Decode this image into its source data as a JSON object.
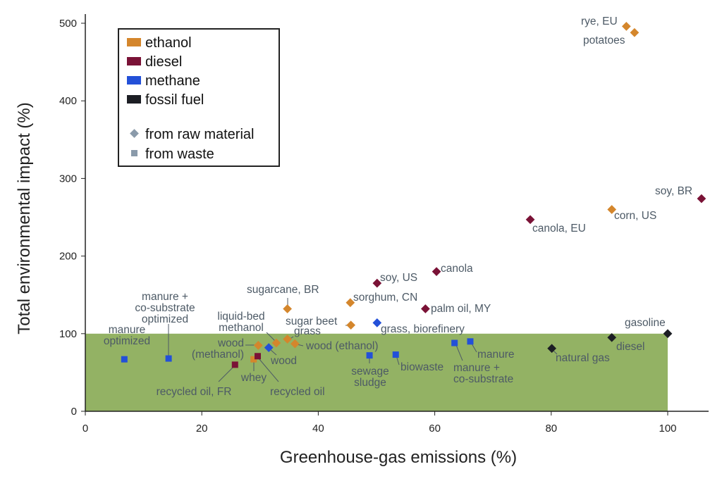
{
  "chart_data": {
    "type": "scatter",
    "title": "",
    "xlabel": "Greenhouse-gas emissions (%)",
    "ylabel": "Total environmental impact (%)",
    "xlim": [
      0,
      106
    ],
    "ylim": [
      0,
      500
    ],
    "xticks": [
      "0",
      "20",
      "40",
      "60",
      "80",
      "100"
    ],
    "yticks": [
      "0",
      "100",
      "200",
      "300",
      "400",
      "500"
    ],
    "grid": false,
    "legend_position": "top-left",
    "reference_region": {
      "x": [
        0,
        100
      ],
      "y": [
        0,
        100
      ],
      "color": "#93b264"
    },
    "colors": {
      "ethanol": "#d4862c",
      "diesel": "#7a1236",
      "methane": "#2350d8",
      "fossil fuel": "#1c1e24",
      "shape": "#8a9aaa"
    },
    "legend": {
      "fuels": [
        "ethanol",
        "diesel",
        "methane",
        "fossil fuel"
      ],
      "shapes": [
        {
          "shape": "diamond",
          "label": "from raw material"
        },
        {
          "shape": "square",
          "label": "from waste"
        }
      ]
    },
    "points": [
      {
        "label": "rye, EU",
        "fuel": "ethanol",
        "shape": "diamond",
        "x": 92.9,
        "y": 496
      },
      {
        "label": "potatoes",
        "fuel": "ethanol",
        "shape": "diamond",
        "x": 94.3,
        "y": 488
      },
      {
        "label": "soy, BR",
        "fuel": "diesel",
        "shape": "diamond",
        "x": 105.8,
        "y": 274
      },
      {
        "label": "corn, US",
        "fuel": "ethanol",
        "shape": "diamond",
        "x": 90.4,
        "y": 260
      },
      {
        "label": "canola, EU",
        "fuel": "diesel",
        "shape": "diamond",
        "x": 76.4,
        "y": 247
      },
      {
        "label": "canola",
        "fuel": "diesel",
        "shape": "diamond",
        "x": 60.3,
        "y": 180
      },
      {
        "label": "soy, US",
        "fuel": "diesel",
        "shape": "diamond",
        "x": 50.1,
        "y": 165
      },
      {
        "label": "palm oil, MY",
        "fuel": "diesel",
        "shape": "diamond",
        "x": 58.4,
        "y": 132
      },
      {
        "label": "sorghum, CN",
        "fuel": "ethanol",
        "shape": "diamond",
        "x": 45.5,
        "y": 140
      },
      {
        "label": "sugarcane, BR",
        "fuel": "ethanol",
        "shape": "diamond",
        "x": 34.7,
        "y": 132
      },
      {
        "label": "sugar beet",
        "fuel": "ethanol",
        "shape": "diamond",
        "x": 45.6,
        "y": 111
      },
      {
        "label": "grass",
        "fuel": "ethanol",
        "shape": "diamond",
        "x": 34.7,
        "y": 93
      },
      {
        "label": "grass, biorefinery",
        "fuel": "methane",
        "shape": "diamond",
        "x": 50.1,
        "y": 114
      },
      {
        "label": "gasoline",
        "fuel": "fossil fuel",
        "shape": "diamond",
        "x": 100,
        "y": 100
      },
      {
        "label": "diesel",
        "fuel": "fossil fuel",
        "shape": "diamond",
        "x": 90.4,
        "y": 95
      },
      {
        "label": "natural gas",
        "fuel": "fossil fuel",
        "shape": "diamond",
        "x": 80.1,
        "y": 81
      },
      {
        "label": "manure",
        "fuel": "methane",
        "shape": "square",
        "x": 66.1,
        "y": 90
      },
      {
        "label": "manure +\nco-substrate",
        "fuel": "methane",
        "shape": "square",
        "x": 63.4,
        "y": 88
      },
      {
        "label": "biowaste",
        "fuel": "methane",
        "shape": "square",
        "x": 53.3,
        "y": 73
      },
      {
        "label": "sewage\nsludge",
        "fuel": "methane",
        "shape": "square",
        "x": 48.8,
        "y": 72
      },
      {
        "label": "wood (ethanol)",
        "fuel": "ethanol",
        "shape": "diamond",
        "x": 36.0,
        "y": 87
      },
      {
        "label": "liquid-bed\nmethanol",
        "fuel": "ethanol",
        "shape": "diamond",
        "x": 32.8,
        "y": 88
      },
      {
        "label": "wood\n(methanol)",
        "fuel": "ethanol",
        "shape": "diamond",
        "x": 29.7,
        "y": 85
      },
      {
        "label": "wood",
        "fuel": "methane",
        "shape": "diamond",
        "x": 31.5,
        "y": 82
      },
      {
        "label": "whey",
        "fuel": "ethanol",
        "shape": "square",
        "x": 28.9,
        "y": 67
      },
      {
        "label": "recycled oil",
        "fuel": "diesel",
        "shape": "square",
        "x": 29.6,
        "y": 71
      },
      {
        "label": "recycled oil, FR",
        "fuel": "diesel",
        "shape": "square",
        "x": 25.7,
        "y": 60
      },
      {
        "label": "manure\noptimized",
        "fuel": "methane",
        "shape": "square",
        "x": 6.7,
        "y": 67
      },
      {
        "label": "manure +\nco-substrate\noptimized",
        "fuel": "methane",
        "shape": "square",
        "x": 14.3,
        "y": 68
      }
    ]
  }
}
